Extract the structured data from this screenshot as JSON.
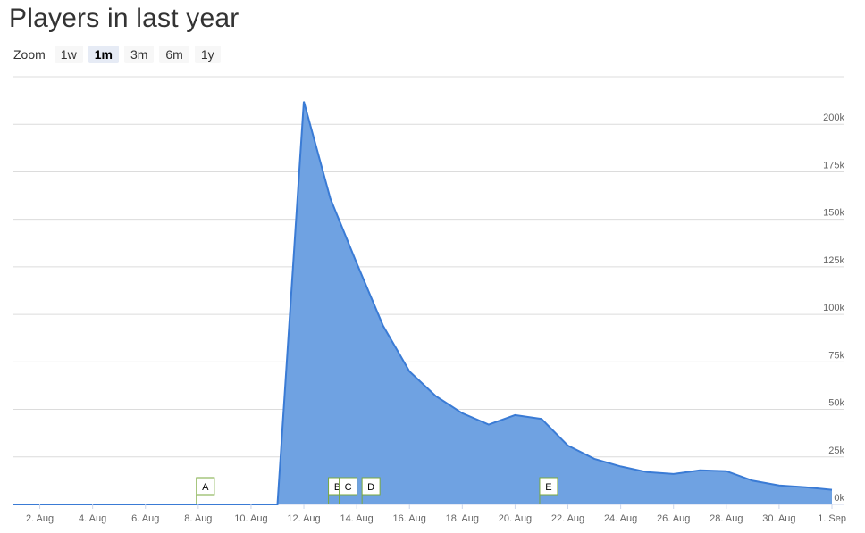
{
  "title": "Players in last year",
  "zoom": {
    "label": "Zoom",
    "options": [
      "1w",
      "1m",
      "3m",
      "6m",
      "1y"
    ],
    "selected": "1m"
  },
  "colors": {
    "area_fill": "#6fa2e2",
    "area_line": "#3a7bd5",
    "grid": "#dcdcdc",
    "flag_border": "#7aa83e"
  },
  "chart_data": {
    "type": "area",
    "title": "Players in last year",
    "xlabel": "",
    "ylabel": "",
    "x_ticks": [
      "2. Aug",
      "4. Aug",
      "6. Aug",
      "8. Aug",
      "10. Aug",
      "12. Aug",
      "14. Aug",
      "16. Aug",
      "18. Aug",
      "20. Aug",
      "22. Aug",
      "24. Aug",
      "26. Aug",
      "28. Aug",
      "30. Aug",
      "1. Sep"
    ],
    "y_ticks": [
      "0k",
      "25k",
      "50k",
      "75k",
      "100k",
      "125k",
      "150k",
      "175k",
      "200k"
    ],
    "ylim": [
      0,
      225000
    ],
    "xlim": [
      "2024-08-01",
      "2024-09-01"
    ],
    "grid": true,
    "series": [
      {
        "x": [
          "2024-08-01",
          "2024-08-02",
          "2024-08-03",
          "2024-08-04",
          "2024-08-05",
          "2024-08-06",
          "2024-08-07",
          "2024-08-08",
          "2024-08-09",
          "2024-08-10",
          "2024-08-11",
          "2024-08-12",
          "2024-08-13",
          "2024-08-14",
          "2024-08-15",
          "2024-08-16",
          "2024-08-17",
          "2024-08-18",
          "2024-08-19",
          "2024-08-20",
          "2024-08-21",
          "2024-08-22",
          "2024-08-23",
          "2024-08-24",
          "2024-08-25",
          "2024-08-26",
          "2024-08-27",
          "2024-08-28",
          "2024-08-29",
          "2024-08-30",
          "2024-08-31",
          "2024-09-01"
        ],
        "values": [
          0,
          0,
          0,
          0,
          0,
          0,
          0,
          0,
          0,
          0,
          0,
          212000,
          161000,
          127000,
          94000,
          70000,
          57000,
          48000,
          42000,
          47000,
          45000,
          31000,
          24000,
          20000,
          17000,
          16000,
          18000,
          17500,
          12500,
          10000,
          9000,
          7700
        ]
      }
    ],
    "flags": [
      {
        "label": "A",
        "date": "2024-08-08"
      },
      {
        "label": "B",
        "date": "2024-08-13"
      },
      {
        "label": "C",
        "date": "2024-08-13"
      },
      {
        "label": "D",
        "date": "2024-08-14"
      },
      {
        "label": "E",
        "date": "2024-08-21"
      }
    ]
  }
}
